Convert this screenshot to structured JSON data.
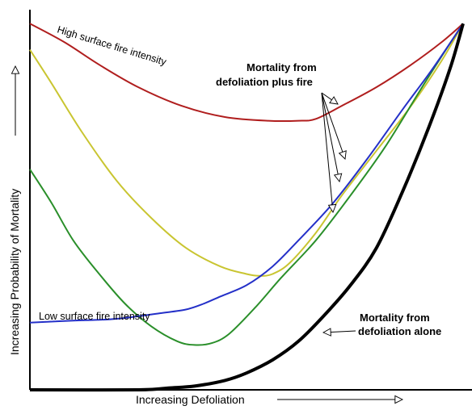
{
  "chart_data": {
    "type": "line",
    "title": "",
    "xlabel": "Increasing Defoliation",
    "ylabel": "Increasing Probability of Mortality",
    "xlim": [
      0,
      100
    ],
    "ylim": [
      0,
      100
    ],
    "grid": false,
    "legend": "none",
    "series": [
      {
        "key": "red",
        "color": "#b01e1e",
        "x": [
          0,
          8,
          16,
          25,
          35,
          45,
          55,
          62,
          66,
          72,
          80,
          88,
          95,
          100
        ],
        "y": [
          98,
          93,
          87,
          81,
          76,
          73,
          72,
          72,
          72.5,
          76,
          81,
          87,
          93,
          98
        ]
      },
      {
        "key": "yellow",
        "color": "#c9c531",
        "x": [
          0,
          5,
          12,
          20,
          28,
          36,
          44,
          50,
          53,
          56,
          60,
          66,
          72,
          80,
          88,
          95,
          100
        ],
        "y": [
          91,
          82,
          69,
          56,
          46,
          38,
          33,
          31,
          30.5,
          31,
          34,
          42,
          52,
          64,
          76,
          88,
          98
        ]
      },
      {
        "key": "green",
        "color": "#2a8f2a",
        "x": [
          0,
          5,
          10,
          16,
          22,
          28,
          34,
          38,
          42,
          46,
          52,
          58,
          66,
          74,
          82,
          90,
          96,
          100
        ],
        "y": [
          59,
          50,
          40,
          31,
          23,
          17,
          13,
          12,
          12.5,
          15,
          22,
          30,
          40,
          52,
          65,
          80,
          91,
          98
        ]
      },
      {
        "key": "blue",
        "color": "#2430c8",
        "x": [
          0,
          10,
          20,
          30,
          36,
          40,
          44,
          50,
          56,
          62,
          70,
          78,
          86,
          93,
          100
        ],
        "y": [
          18,
          18.5,
          19,
          20.5,
          21.5,
          23,
          25,
          28,
          33,
          40,
          50,
          62,
          75,
          86,
          98
        ]
      },
      {
        "key": "black",
        "color": "#000000",
        "x": [
          0,
          25,
          32,
          38,
          45,
          50,
          56,
          62,
          68,
          74,
          80,
          86,
          92,
          97,
          100
        ],
        "y": [
          0,
          0,
          0.5,
          1,
          2.5,
          4.5,
          8,
          13,
          20,
          28,
          38,
          53,
          70,
          86,
          98
        ]
      }
    ],
    "annotations": {
      "high_label": "High surface fire intensity",
      "low_label": "Low surface fire intensity",
      "fire_line1": "Mortality from",
      "fire_line2": "defoliation plus fire",
      "alone_line1": "Mortality from",
      "alone_line2": "defoliation alone"
    }
  }
}
